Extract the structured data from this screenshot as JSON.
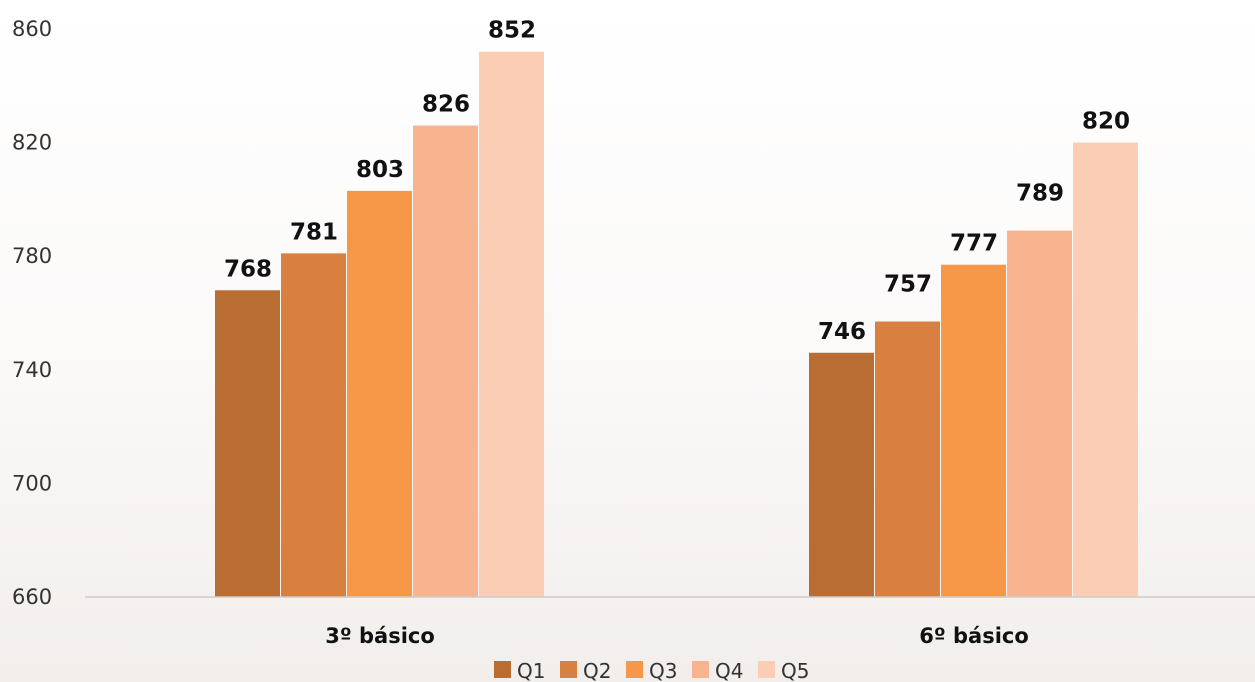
{
  "chart_data": {
    "type": "bar",
    "categories": [
      "3º básico",
      "6º básico"
    ],
    "series": [
      {
        "name": "Q1",
        "values": [
          768,
          746
        ],
        "color": "#b96d33"
      },
      {
        "name": "Q2",
        "values": [
          781,
          757
        ],
        "color": "#d98040"
      },
      {
        "name": "Q3",
        "values": [
          803,
          777
        ],
        "color": "#f69848"
      },
      {
        "name": "Q4",
        "values": [
          826,
          789
        ],
        "color": "#f8b48e"
      },
      {
        "name": "Q5",
        "values": [
          852,
          820
        ],
        "color": "#fbcdb5"
      }
    ],
    "ylim": [
      660,
      860
    ],
    "yticks": [
      660,
      700,
      740,
      780,
      820,
      860
    ],
    "ytick_labels": [
      "660",
      "700",
      "740",
      "780",
      "820",
      "860"
    ],
    "data_labels": true,
    "grid": false,
    "legend": "bottom",
    "title": "",
    "xlabel": "",
    "ylabel": ""
  }
}
